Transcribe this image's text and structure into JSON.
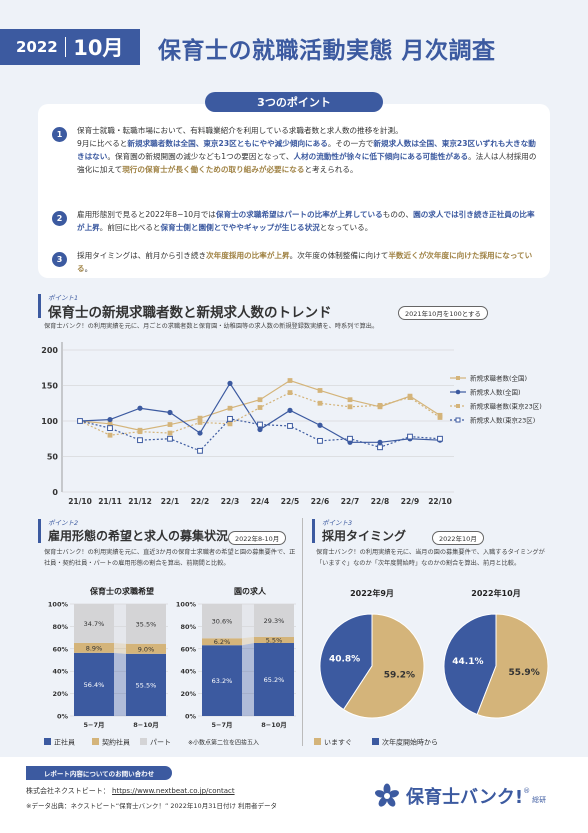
{
  "header": {
    "year": "2022",
    "month": "10月",
    "title": "保育士の就職活動実態 月次調査"
  },
  "points": {
    "title": "3つのポイント",
    "items": [
      {
        "num": "1",
        "segments": [
          {
            "t": "保育士就職・転職市場において、有料職業紹介を利用している求職者数と求人数の推移を計測。",
            "s": "n"
          },
          {
            "t": "9月に比べると",
            "s": "n"
          },
          {
            "t": "新規求職者数は全国、東京23区ともにやや減少傾向にある",
            "s": "b"
          },
          {
            "t": "。その一方で",
            "s": "n"
          },
          {
            "t": "新規求人数は全国、東京23区いずれも大きな動きはない",
            "s": "b"
          },
          {
            "t": "。保育園の新規開園の減少なども1つの要因となって、",
            "s": "n"
          },
          {
            "t": "人材の流動性が徐々に低下傾向にある可能性がある",
            "s": "b"
          },
          {
            "t": "。法人は人材採用の強化に加えて",
            "s": "n"
          },
          {
            "t": "現行の保育士が長く働くための取り組みが必要になる",
            "s": "g"
          },
          {
            "t": "と考えられる。",
            "s": "n"
          }
        ]
      },
      {
        "num": "2",
        "segments": [
          {
            "t": "雇用形態別で見ると2022年8−10月では",
            "s": "n"
          },
          {
            "t": "保育士の求職希望はパートの比率が上昇している",
            "s": "b"
          },
          {
            "t": "ものの、",
            "s": "n"
          },
          {
            "t": "園の求人では引き続き正社員の比率が上昇",
            "s": "b"
          },
          {
            "t": "。前回に比べると",
            "s": "n"
          },
          {
            "t": "保育士側と園側とでややギャップが生じる状況",
            "s": "b"
          },
          {
            "t": "となっている。",
            "s": "n"
          }
        ]
      },
      {
        "num": "3",
        "segments": [
          {
            "t": "採用タイミングは、前月から引き続き",
            "s": "n"
          },
          {
            "t": "次年度採用の比率が上昇",
            "s": "g"
          },
          {
            "t": "。次年度の体制整備に向けて",
            "s": "n"
          },
          {
            "t": "半数近くが次年度に向けた採用になっている",
            "s": "g"
          },
          {
            "t": "。",
            "s": "n"
          }
        ]
      }
    ]
  },
  "point1": {
    "label": "ポイント1",
    "title": "保育士の新規求職者数と新規求人数のトレンド",
    "pill": "2021年10月を100とする",
    "desc": "保育士バンク！の利用実績を元に、月ごとの求職者数と保育園・幼稚園等の求人数の新規登録数実績を、時系列で算出。"
  },
  "point2": {
    "label": "ポイント2",
    "title": "雇用形態の希望と求人の募集状況",
    "pill": "2022年8-10月",
    "desc": "保育士バンク！の利用実績を元に、直近3か月の保育士求職者の希望と園の募集要件で、正社員・契約社員・パートの雇用形態の割合を算出、前期間と比較。",
    "note": "※小数点第二位を四捨五入"
  },
  "point3": {
    "label": "ポイント3",
    "title": "採用タイミング",
    "pill": "2022年10月",
    "desc": "保育士バンク！の利用実績を元に、当月の園の募集要件で、入職するタイミングが「いますぐ」なのか「次年度開始時」なのかの割合を算出、前月と比較。"
  },
  "colors": {
    "navy": "#3c5aa0",
    "gold": "#d4b47a",
    "gray": "#d4d4d6"
  },
  "chart_data": [
    {
      "type": "line",
      "x": [
        "21/10",
        "21/11",
        "21/12",
        "22/1",
        "22/2",
        "22/3",
        "22/4",
        "22/5",
        "22/6",
        "22/7",
        "22/8",
        "22/9",
        "22/10"
      ],
      "ylim": [
        0,
        200
      ],
      "yticks": [
        0,
        50,
        100,
        150,
        200
      ],
      "legend": "right",
      "series": [
        {
          "name": "新規求職者数(全国)",
          "color": "#d4b47a",
          "dash": "solid",
          "marker": "square",
          "values": [
            100,
            96,
            87,
            95,
            104,
            118,
            130,
            157,
            143,
            130,
            120,
            135,
            108
          ]
        },
        {
          "name": "新規求人数(全国)",
          "color": "#3c5aa0",
          "dash": "solid",
          "marker": "circle",
          "values": [
            100,
            102,
            118,
            112,
            83,
            153,
            88,
            115,
            94,
            70,
            70,
            75,
            73
          ]
        },
        {
          "name": "新規求職者数(東京23区)",
          "color": "#d4b47a",
          "dash": "dotted",
          "marker": "square",
          "values": [
            100,
            80,
            85,
            83,
            98,
            96,
            119,
            140,
            125,
            120,
            122,
            133,
            105
          ]
        },
        {
          "name": "新規求人数(東京23区)",
          "color": "#3c5aa0",
          "dash": "dotted",
          "marker": "square-open",
          "values": [
            100,
            90,
            73,
            75,
            58,
            103,
            95,
            93,
            72,
            75,
            63,
            78,
            75
          ]
        }
      ]
    },
    {
      "type": "bar",
      "title": "保育士の求職希望",
      "categories": [
        "5−7月",
        "8−10月"
      ],
      "yticks": [
        "0%",
        "20%",
        "40%",
        "60%",
        "80%",
        "100%"
      ],
      "series": [
        {
          "name": "正社員",
          "values": [
            56.4,
            55.5
          ],
          "labels": [
            "56.4%",
            "55.5%"
          ]
        },
        {
          "name": "契約社員",
          "values": [
            8.9,
            9.0
          ],
          "labels": [
            "8.9%",
            "9.0%"
          ]
        },
        {
          "name": "パート",
          "values": [
            34.7,
            35.5
          ],
          "labels": [
            "34.7%",
            "35.5%"
          ]
        }
      ]
    },
    {
      "type": "bar",
      "title": "園の求人",
      "categories": [
        "5−7月",
        "8−10月"
      ],
      "yticks": [
        "0%",
        "20%",
        "40%",
        "60%",
        "80%",
        "100%"
      ],
      "series": [
        {
          "name": "正社員",
          "values": [
            63.2,
            65.2
          ],
          "labels": [
            "63.2%",
            "65.2%"
          ]
        },
        {
          "name": "契約社員",
          "values": [
            6.2,
            5.5
          ],
          "labels": [
            "6.2%",
            "5.5%"
          ]
        },
        {
          "name": "パート",
          "values": [
            30.6,
            29.3
          ],
          "labels": [
            "30.6%",
            "29.3%"
          ]
        }
      ]
    },
    {
      "type": "pie",
      "title": "2022年9月",
      "slices": [
        {
          "name": "次年度開始時から",
          "value": 40.8,
          "label": "40.8%",
          "color": "#3c5aa0"
        },
        {
          "name": "いますぐ",
          "value": 59.2,
          "label": "59.2%",
          "color": "#d4b47a"
        }
      ]
    },
    {
      "type": "pie",
      "title": "2022年10月",
      "slices": [
        {
          "name": "次年度開始時から",
          "value": 44.1,
          "label": "44.1%",
          "color": "#3c5aa0"
        },
        {
          "name": "いますぐ",
          "value": 55.9,
          "label": "55.9%",
          "color": "#d4b47a"
        }
      ]
    }
  ],
  "legends": {
    "bar": [
      "正社員",
      "契約社員",
      "パート"
    ],
    "pie": [
      "いますぐ",
      "次年度開始時から"
    ]
  },
  "footer": {
    "contact_pill": "レポート内容についてのお問い合わせ",
    "company": "株式会社ネクストビート：",
    "url": "https://www.nextbeat.co.jp/contact",
    "source": "※データ出典：ネクストビート“保育士バンク！” 2022年10月31日付け 利用者データ",
    "logo": "保育士バンク!",
    "logo_sup": "®",
    "logo_sub": "総研"
  }
}
